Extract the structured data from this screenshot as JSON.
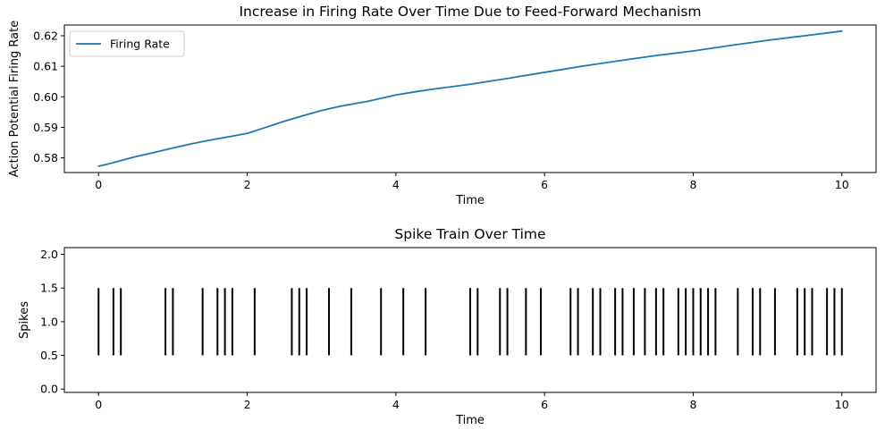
{
  "chart_data": [
    {
      "type": "line",
      "title": "Increase in Firing Rate Over Time Due to Feed-Forward Mechanism",
      "xlabel": "Time",
      "ylabel": "Action Potential Firing Rate",
      "xlim": [
        -0.46,
        10.46
      ],
      "ylim": [
        0.5752,
        0.6235
      ],
      "x_ticks": [
        0,
        2,
        4,
        6,
        8,
        10
      ],
      "x_tick_labels": [
        "0",
        "2",
        "4",
        "6",
        "8",
        "10"
      ],
      "y_ticks": [
        0.58,
        0.59,
        0.6,
        0.61,
        0.62
      ],
      "y_tick_labels": [
        "0.58",
        "0.59",
        "0.60",
        "0.61",
        "0.62"
      ],
      "grid": false,
      "legend_position": "upper-left",
      "series": [
        {
          "name": "Firing Rate",
          "color": "#1f77b4",
          "x": [
            0,
            0.1,
            0.3,
            0.5,
            0.75,
            1.0,
            1.25,
            1.5,
            1.75,
            2.0,
            2.25,
            2.5,
            2.75,
            3.0,
            3.25,
            3.5,
            3.6,
            3.8,
            4.0,
            4.25,
            4.5,
            4.75,
            5.0,
            5.5,
            6.0,
            6.5,
            7.0,
            7.5,
            8.0,
            8.5,
            9.0,
            9.5,
            10.0
          ],
          "y": [
            0.5773,
            0.5778,
            0.5791,
            0.5804,
            0.5818,
            0.5832,
            0.5846,
            0.5858,
            0.5869,
            0.588,
            0.59,
            0.592,
            0.5938,
            0.5955,
            0.5969,
            0.598,
            0.5984,
            0.5995,
            0.6006,
            0.6016,
            0.6025,
            0.6033,
            0.6041,
            0.606,
            0.608,
            0.61,
            0.6118,
            0.6135,
            0.615,
            0.6168,
            0.6185,
            0.62,
            0.6215
          ]
        }
      ]
    },
    {
      "type": "scatter",
      "title": "Spike Train Over Time",
      "xlabel": "Time",
      "ylabel": "Spikes",
      "xlim": [
        -0.46,
        10.46
      ],
      "ylim": [
        -0.05,
        2.1
      ],
      "x_ticks": [
        0,
        2,
        4,
        6,
        8,
        10
      ],
      "x_tick_labels": [
        "0",
        "2",
        "4",
        "6",
        "8",
        "10"
      ],
      "y_ticks": [
        0.0,
        0.5,
        1.0,
        1.5,
        2.0
      ],
      "y_tick_labels": [
        "0.0",
        "0.5",
        "1.0",
        "1.5",
        "2.0"
      ],
      "grid": false,
      "marker": "vertical line",
      "color": "#000000",
      "spike_y_range": [
        0.5,
        1.5
      ],
      "spike_times": [
        0.0,
        0.2,
        0.3,
        0.9,
        1.0,
        1.4,
        1.6,
        1.7,
        1.8,
        2.1,
        2.6,
        2.7,
        2.8,
        3.1,
        3.4,
        3.8,
        4.1,
        4.4,
        5.0,
        5.1,
        5.4,
        5.5,
        5.75,
        5.95,
        6.35,
        6.45,
        6.65,
        6.75,
        6.95,
        7.05,
        7.2,
        7.35,
        7.5,
        7.6,
        7.8,
        7.9,
        8.0,
        8.1,
        8.2,
        8.3,
        8.6,
        8.8,
        8.9,
        9.1,
        9.4,
        9.5,
        9.6,
        9.8,
        9.9,
        10.0
      ]
    }
  ]
}
